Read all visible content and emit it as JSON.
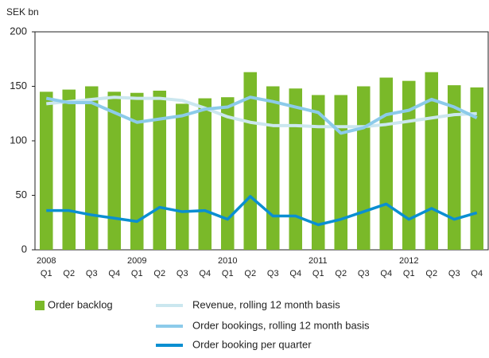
{
  "chart_data": {
    "type": "bar-line",
    "y_label": "SEK bn",
    "categories": [
      "Q1",
      "Q2",
      "Q3",
      "Q4",
      "Q1",
      "Q2",
      "Q3",
      "Q4",
      "Q1",
      "Q2",
      "Q3",
      "Q4",
      "Q1",
      "Q2",
      "Q3",
      "Q4",
      "Q1",
      "Q2",
      "Q3",
      "Q4"
    ],
    "years": [
      2008,
      2009,
      2010,
      2011,
      2012
    ],
    "ylim": [
      0,
      200
    ],
    "yticks": [
      0,
      50,
      100,
      150,
      200
    ],
    "series": [
      {
        "name": "Order backlog",
        "kind": "bar",
        "color": "#7ab929",
        "values": [
          145,
          147,
          150,
          145,
          144,
          146,
          134,
          139,
          140,
          163,
          150,
          148,
          142,
          142,
          150,
          158,
          155,
          163,
          151,
          149
        ]
      },
      {
        "name": "Revenue, rolling 12 month basis",
        "kind": "line",
        "color": "#cbe7ef",
        "values": [
          134,
          136,
          138,
          140,
          139,
          139,
          137,
          130,
          122,
          117,
          114,
          114,
          113,
          113,
          113,
          115,
          118,
          121,
          124,
          125
        ]
      },
      {
        "name": "Order bookings, rolling 12 month basis",
        "kind": "line",
        "color": "#8ccbea",
        "values": [
          139,
          135,
          135,
          126,
          117,
          120,
          123,
          129,
          131,
          140,
          136,
          131,
          126,
          107,
          112,
          124,
          128,
          138,
          131,
          121
        ]
      },
      {
        "name": "Order booking per quarter",
        "kind": "line",
        "color": "#0a8fd1",
        "values": [
          36,
          36,
          32,
          29,
          26,
          39,
          35,
          36,
          28,
          49,
          31,
          31,
          23,
          28,
          35,
          42,
          28,
          38,
          28,
          34
        ]
      }
    ]
  }
}
